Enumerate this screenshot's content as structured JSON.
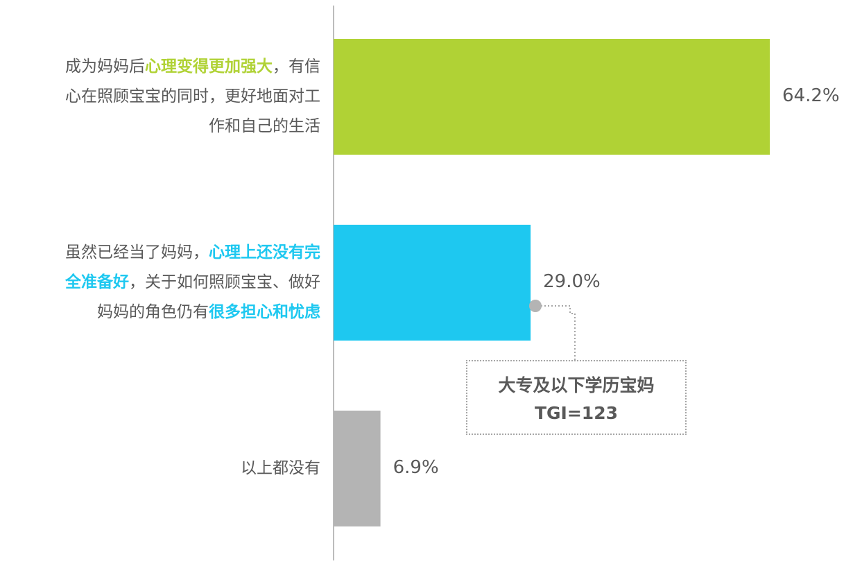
{
  "chart_data": {
    "type": "bar",
    "orientation": "horizontal",
    "categories": [
      [
        {
          "text": "成为妈妈后"
        },
        {
          "text": "心理变得更加强大",
          "highlight": true
        },
        {
          "text": "，有信"
        },
        {
          "br": true
        },
        {
          "text": "心在照顾宝宝的同时，更好地面对工"
        },
        {
          "br": true
        },
        {
          "text": "作和自己的生活"
        }
      ],
      [
        {
          "text": "虽然已经当了妈妈，"
        },
        {
          "text": "心理上还没有完",
          "highlight": true
        },
        {
          "br": true
        },
        {
          "text": "全准备好",
          "highlight": true
        },
        {
          "text": "，关于如何照顾宝宝、做好"
        },
        {
          "br": true
        },
        {
          "text": "妈妈的角色仍有"
        },
        {
          "text": "很多担心和忧虑",
          "highlight": true
        }
      ],
      [
        {
          "text": "以上都没有"
        }
      ]
    ],
    "values": [
      64.2,
      29.0,
      6.9
    ],
    "value_labels": [
      "64.2%",
      "29.0%",
      "6.9%"
    ],
    "colors": [
      "#b0d235",
      "#1ec8f0",
      "#b4b4b4"
    ],
    "xlim": [
      0,
      64.2
    ],
    "grid": false,
    "legend": "none",
    "annotation": {
      "target_index": 1,
      "lines": [
        "大专及以下学历宝妈",
        "TGI=123"
      ]
    }
  }
}
